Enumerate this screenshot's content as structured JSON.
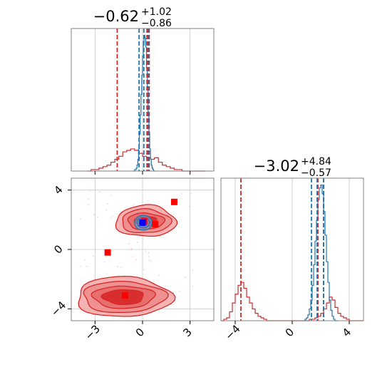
{
  "colors": {
    "red": "#d62728",
    "blue": "#1f77b4",
    "red_fill": "#f4a6a6",
    "red_mid": "#e86a6a",
    "red_dark": "#d62728",
    "marker_blue": "#0000ff",
    "marker_red": "#ff0000"
  },
  "chart_data": [
    {
      "type": "histogram",
      "panel": "top-left",
      "title": {
        "value": "−0.62",
        "plus": "+1.02",
        "minus": "−0.86"
      },
      "x_range": [
        -4.5,
        4.5
      ],
      "x_ticks": [
        -3,
        0,
        3
      ],
      "grid": true,
      "quantile_lines": {
        "red": [
          -1.6,
          0.28,
          0.42
        ],
        "blue": [
          -0.22,
          0.08,
          0.35
        ]
      },
      "series": [
        {
          "color": "red",
          "bins_x_start": -3.5,
          "bin_width": 0.25,
          "values": [
            0,
            1,
            1,
            2,
            3,
            4,
            6,
            8,
            10,
            13,
            14,
            15,
            14,
            12,
            10,
            9,
            8,
            9,
            6,
            4,
            3,
            2,
            1,
            1,
            0,
            0,
            0,
            0,
            0,
            0
          ]
        },
        {
          "color": "blue",
          "bins_x_start": -0.6,
          "bin_width": 0.05,
          "values": [
            0,
            0,
            1,
            1,
            2,
            4,
            8,
            15,
            25,
            38,
            52,
            65,
            78,
            88,
            92,
            90,
            84,
            70,
            55,
            40,
            26,
            15,
            8,
            4,
            2,
            1,
            0,
            0
          ]
        }
      ]
    },
    {
      "type": "contour-scatter",
      "panel": "bottom-left",
      "x_range": [
        -4.5,
        4.5
      ],
      "y_range": [
        -4.8,
        4.8
      ],
      "x_ticks": [
        -3,
        0,
        3
      ],
      "y_ticks": [
        -4,
        0,
        4
      ],
      "x_tick_labels": [
        "−3",
        "0",
        "3"
      ],
      "y_tick_labels": [
        "−4",
        "0",
        "4"
      ],
      "grid": true,
      "red_clusters": [
        {
          "center": [
            0.2,
            1.9
          ],
          "levels": [
            [
              1.9,
              1.05
            ],
            [
              1.55,
              0.8
            ],
            [
              1.15,
              0.55
            ],
            [
              0.7,
              0.35
            ]
          ]
        },
        {
          "center": [
            -1.2,
            -3.2
          ],
          "levels": [
            [
              3.0,
              1.35
            ],
            [
              2.6,
              1.05
            ],
            [
              1.95,
              0.75
            ],
            [
              1.3,
              0.5
            ]
          ]
        }
      ],
      "blue_cluster": {
        "center": [
          0.05,
          1.8
        ],
        "levels": [
          [
            0.55,
            0.5
          ],
          [
            0.4,
            0.35
          ],
          [
            0.25,
            0.2
          ]
        ]
      },
      "red_markers": [
        [
          -2.2,
          -0.2
        ],
        [
          2.0,
          3.2
        ],
        [
          -1.1,
          -3.1
        ],
        [
          0.8,
          1.7
        ],
        [
          0.1,
          1.9
        ]
      ],
      "blue_marker": [
        0.0,
        1.8
      ]
    },
    {
      "type": "histogram",
      "panel": "bottom-right",
      "title": {
        "value": "−3.02",
        "plus": "+4.84",
        "minus": "−0.57"
      },
      "x_range": [
        -5.0,
        5.0
      ],
      "x_ticks": [
        -4,
        0,
        4
      ],
      "x_tick_labels": [
        "−4",
        "0",
        "4"
      ],
      "grid": true,
      "quantile_lines": {
        "red": [
          -3.6,
          1.8,
          2.2
        ],
        "blue": [
          1.35,
          1.75,
          2.2
        ]
      },
      "series": [
        {
          "color": "red",
          "bins_x_start": -5.0,
          "bin_width": 0.2,
          "values": [
            0,
            1,
            2,
            6,
            12,
            18,
            24,
            26,
            22,
            16,
            12,
            8,
            5,
            3,
            2,
            1,
            0,
            0,
            0,
            0,
            0,
            0,
            0,
            0,
            0,
            0,
            0,
            0,
            0,
            0,
            0,
            1,
            1,
            2,
            3,
            5,
            8,
            12,
            16,
            14,
            9,
            5,
            3,
            2,
            1,
            0,
            0,
            0,
            0,
            0
          ]
        },
        {
          "color": "blue",
          "bins_x_start": 0.8,
          "bin_width": 0.1,
          "values": [
            0,
            1,
            2,
            4,
            8,
            14,
            24,
            38,
            54,
            68,
            82,
            90,
            92,
            86,
            74,
            58,
            40,
            26,
            14,
            7,
            3,
            1,
            0,
            0
          ]
        }
      ]
    }
  ]
}
